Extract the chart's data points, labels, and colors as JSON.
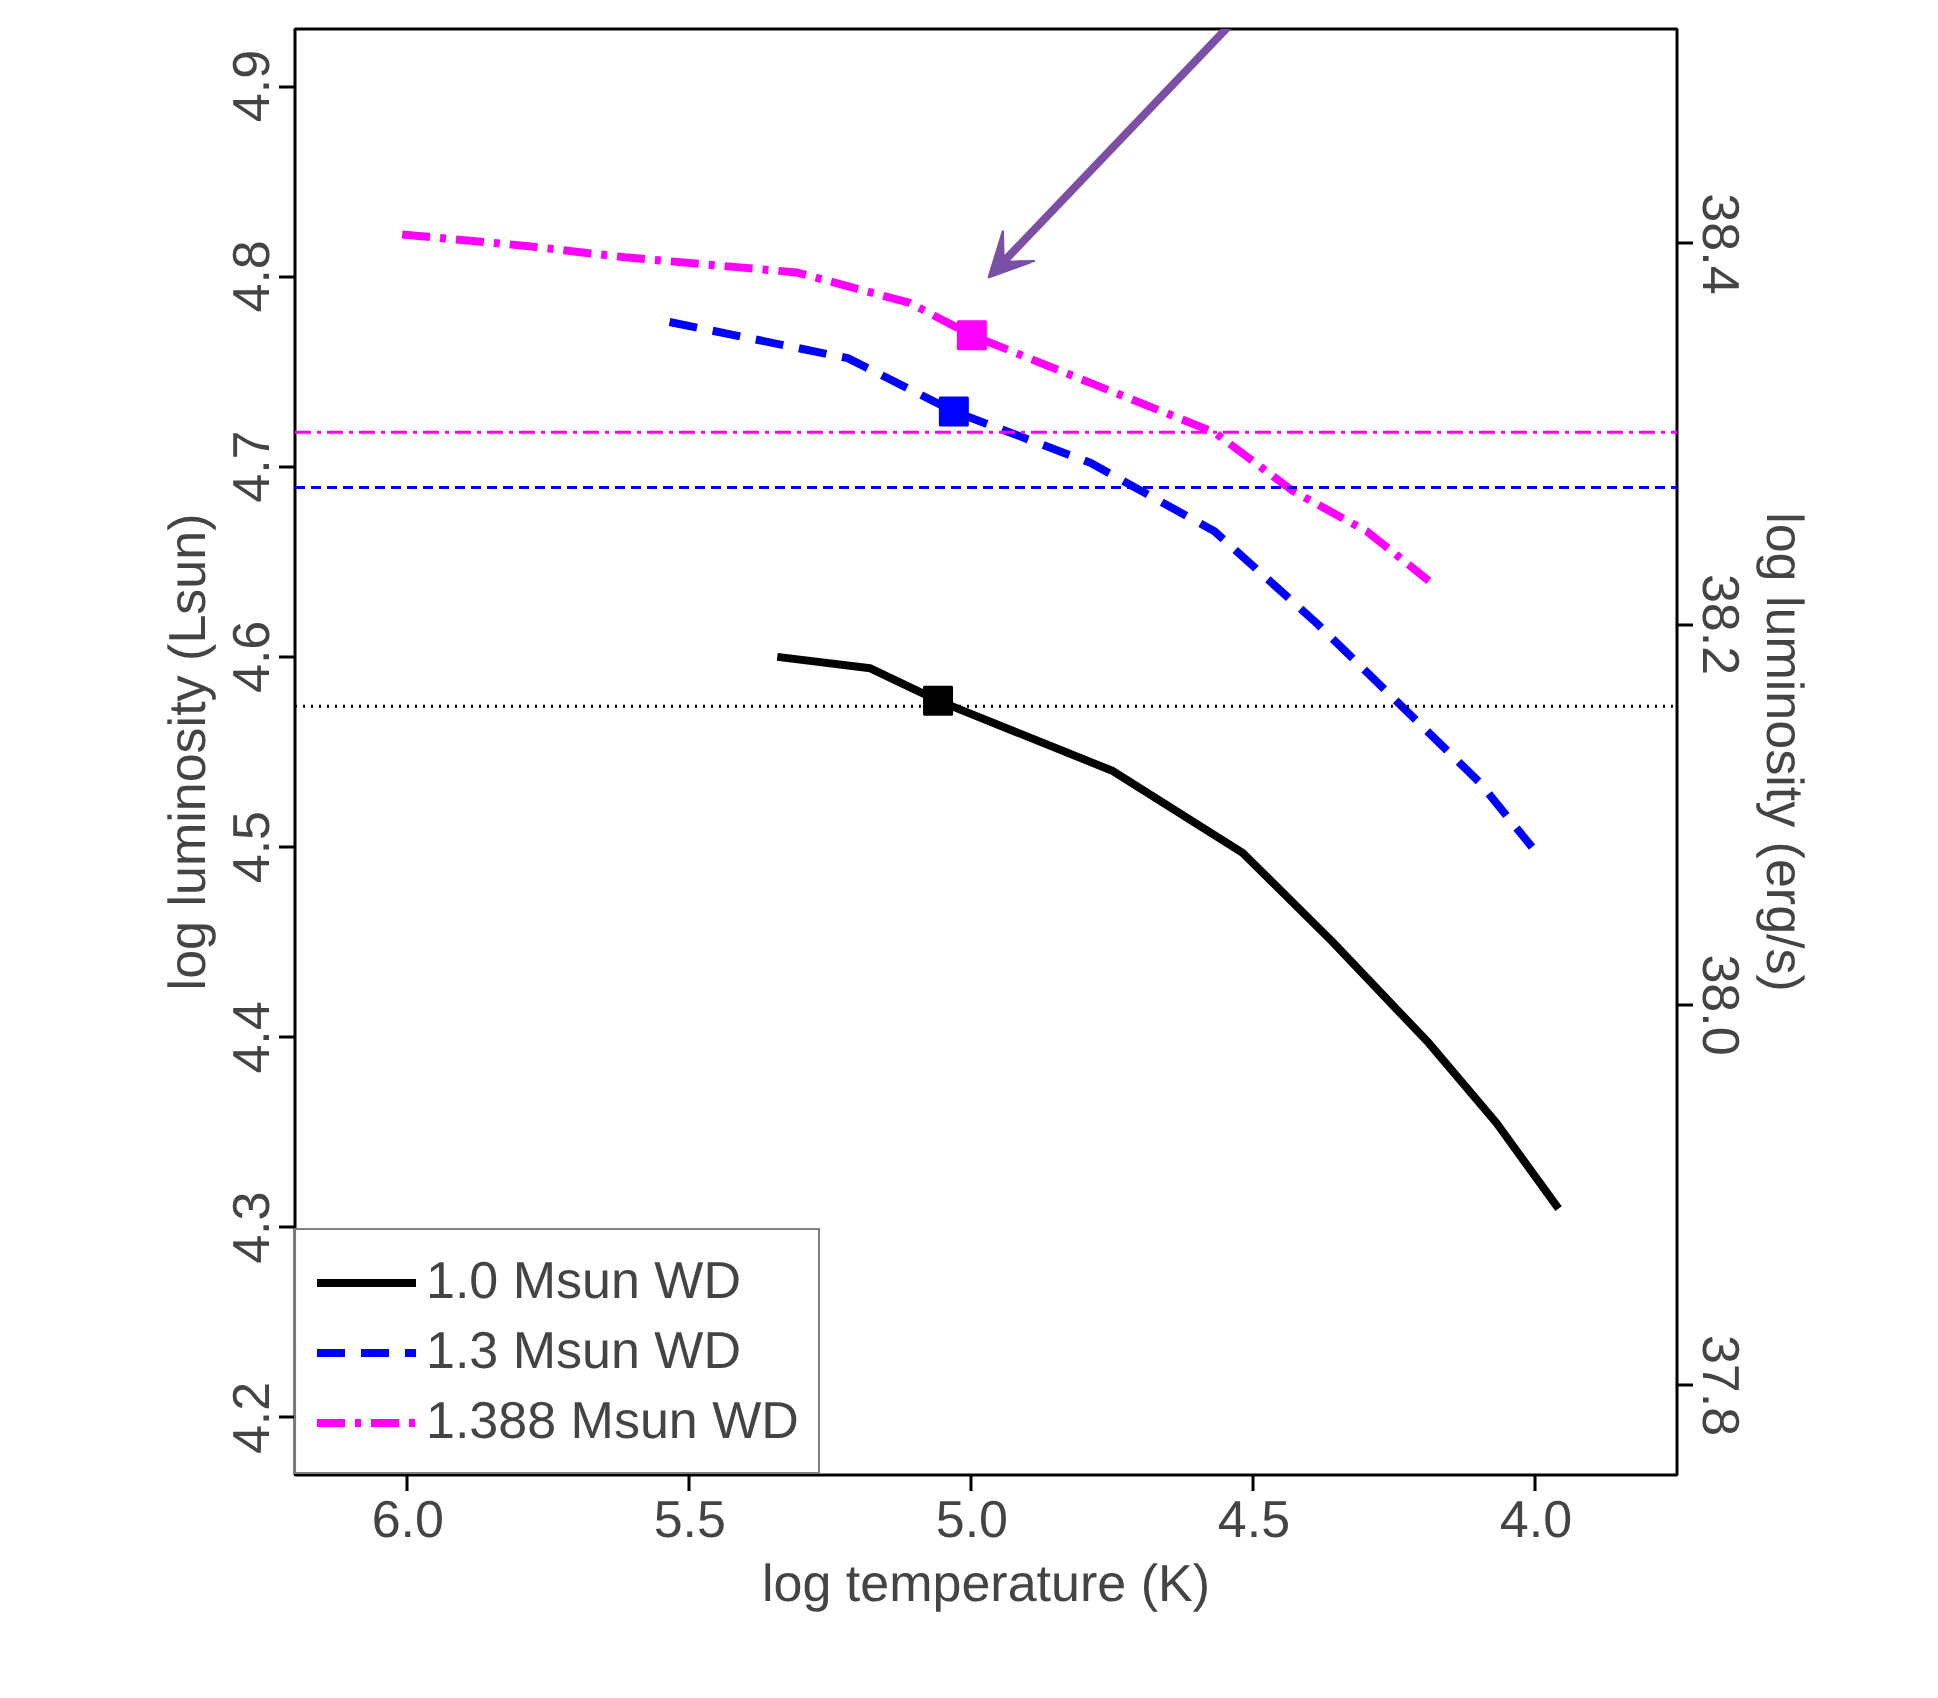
{
  "chart_data": {
    "type": "line",
    "xlabel": "log temperature (K)",
    "ylabel": "log luminosity (Lsun)",
    "y2label": "log luminosity (erg/s)",
    "xlim": [
      6.2,
      3.75
    ],
    "xticks": [
      {
        "value": 6.0,
        "label": "6.0"
      },
      {
        "value": 5.5,
        "label": "5.5"
      },
      {
        "value": 5.0,
        "label": "5.0"
      },
      {
        "value": 4.5,
        "label": "4.5"
      },
      {
        "value": 4.0,
        "label": "4.0"
      }
    ],
    "ylim": [
      4.17,
      4.93
    ],
    "yticks": [
      {
        "value": 4.2,
        "label": "4.2"
      },
      {
        "value": 4.3,
        "label": "4.3"
      },
      {
        "value": 4.4,
        "label": "4.4"
      },
      {
        "value": 4.5,
        "label": "4.5"
      },
      {
        "value": 4.6,
        "label": "4.6"
      },
      {
        "value": 4.7,
        "label": "4.7"
      },
      {
        "value": 4.8,
        "label": "4.8"
      },
      {
        "value": 4.9,
        "label": "4.9"
      }
    ],
    "y2lim": [
      37.753,
      38.513
    ],
    "y2ticks": [
      {
        "value": 37.8,
        "label": "37.8"
      },
      {
        "value": 38.0,
        "label": "38.0"
      },
      {
        "value": 38.2,
        "label": "38.2"
      },
      {
        "value": 38.4,
        "label": "38.4"
      }
    ],
    "legend": "bottom left",
    "grid": false,
    "series": [
      {
        "name": "1.0 Msun WD",
        "color": "#000000",
        "line_style": "solid",
        "x": [
          5.345,
          5.18,
          5.06,
          4.75,
          4.52,
          4.36,
          4.19,
          4.07,
          3.96
        ],
        "values": [
          4.6,
          4.594,
          4.577,
          4.54,
          4.497,
          4.45,
          4.397,
          4.355,
          4.31
        ]
      },
      {
        "name": "1.3 Msun WD",
        "color": "#0000ff",
        "line_style": "dashed",
        "x": [
          5.536,
          5.22,
          5.032,
          4.79,
          4.57,
          4.39,
          4.21,
          4.1,
          4.007
        ],
        "values": [
          4.776,
          4.757,
          4.729,
          4.702,
          4.666,
          4.618,
          4.566,
          4.534,
          4.5
        ]
      },
      {
        "name": "1.388 Msun WD",
        "color": "#ff00ff",
        "line_style": "dashdot",
        "x": [
          6.01,
          5.79,
          5.615,
          5.31,
          5.11,
          5.0,
          4.79,
          4.57,
          4.43,
          4.3,
          4.19
        ],
        "values": [
          4.822,
          4.816,
          4.81,
          4.802,
          4.786,
          4.769,
          4.744,
          4.718,
          4.687,
          4.666,
          4.64
        ]
      },
      {
        "type": "scatter",
        "marker": "square",
        "color": "#000000",
        "x": [
          5.06
        ],
        "values": [
          4.577
        ]
      },
      {
        "type": "scatter",
        "marker": "square",
        "color": "#0000ff",
        "x": [
          5.032
        ],
        "values": [
          4.729
        ]
      },
      {
        "type": "scatter",
        "marker": "square",
        "color": "#ff00ff",
        "x": [
          5.0
        ],
        "values": [
          4.769
        ]
      }
    ],
    "ref_lines": [
      {
        "axis": "y",
        "value": 4.718,
        "color": "#ff00ff",
        "line_style": "dashdot"
      },
      {
        "axis": "y",
        "value": 4.689,
        "color": "#0000ff",
        "line_style": "dashed"
      },
      {
        "axis": "y",
        "value": 4.574,
        "color": "#000000",
        "line_style": "dotted"
      }
    ]
  }
}
